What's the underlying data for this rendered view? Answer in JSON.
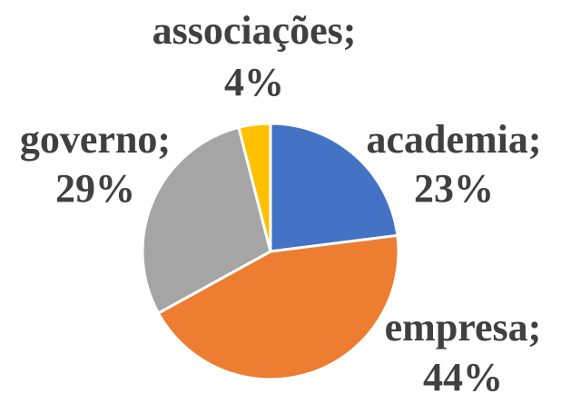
{
  "chart_data": {
    "type": "pie",
    "categories": [
      "academia;",
      "empresa;",
      "governo;",
      "associações;"
    ],
    "values": [
      23,
      44,
      29,
      4
    ],
    "value_labels": [
      "23%",
      "44%",
      "29%",
      "4%"
    ],
    "colors": [
      "#4472c4",
      "#ed7d31",
      "#a5a5a5",
      "#ffc000"
    ]
  }
}
